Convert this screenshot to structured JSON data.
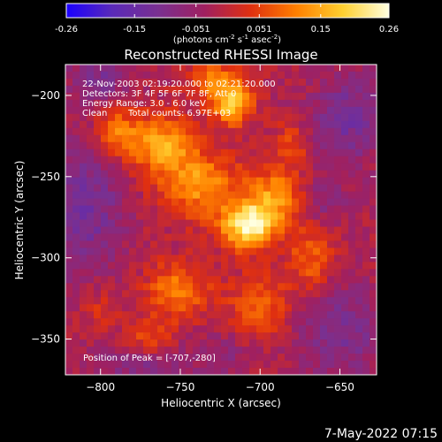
{
  "colorbar": {
    "tick_labels": [
      "-0.26",
      "-0.15",
      "-0.051",
      "0.051",
      "0.15",
      "0.26"
    ],
    "tick_values": [
      -0.26,
      -0.15,
      -0.051,
      0.051,
      0.15,
      0.26
    ],
    "range": [
      -0.26,
      0.26
    ],
    "units_prefix": "(photons cm",
    "units_sup1": "-2",
    "units_mid1": " s",
    "units_sup2": "-1",
    "units_mid2": " asec",
    "units_sup3": "-2",
    "units_suffix": ")",
    "colors": [
      "#1a00ff",
      "#5a2ab8",
      "#7a3090",
      "#a02060",
      "#e03010",
      "#ff8000",
      "#ffd030",
      "#ffffe0"
    ]
  },
  "annotations": {
    "time_range": "22-Nov-2003 02:19:20.000 to 02:21:20.000",
    "detectors": "Detectors: 3F 4F 5F 6F 7F 8F, Att 0",
    "energy_range": "Energy Range: 3.0 - 6.0 keV",
    "clean": "Clean",
    "total_counts": "Total counts: 6.97E+03",
    "peak_position": "Position of Peak = [-707,-280]"
  },
  "footer": {
    "date": "7-May-2022 07:15"
  },
  "chart_data": {
    "type": "heatmap",
    "title": "Reconstructed RHESSI Image",
    "xlabel": "Heliocentric X (arcsec)",
    "ylabel": "Heliocentric Y (arcsec)",
    "xlim": [
      -822,
      -627
    ],
    "ylim": [
      -372,
      -181
    ],
    "xticks": [
      -800,
      -750,
      -700,
      -650
    ],
    "yticks": [
      -200,
      -250,
      -300,
      -350
    ],
    "xtick_labels": [
      "−800",
      "−750",
      "−700",
      "−650"
    ],
    "ytick_labels": [
      "−200",
      "−250",
      "−300",
      "−350"
    ],
    "value_range": [
      -0.26,
      0.26
    ],
    "peak": {
      "x": -707,
      "y": -280,
      "value": 0.26
    },
    "sources": [
      {
        "x": -707,
        "y": -280,
        "sx": 12,
        "sy": 10,
        "amp": 0.26
      },
      {
        "x": -718,
        "y": -205,
        "sx": 9,
        "sy": 9,
        "amp": 0.2
      },
      {
        "x": -762,
        "y": -230,
        "sx": 14,
        "sy": 12,
        "amp": 0.16
      },
      {
        "x": -738,
        "y": -255,
        "sx": 18,
        "sy": 14,
        "amp": 0.15
      },
      {
        "x": -690,
        "y": -262,
        "sx": 12,
        "sy": 12,
        "amp": 0.14
      },
      {
        "x": -790,
        "y": -222,
        "sx": 10,
        "sy": 12,
        "amp": 0.12
      },
      {
        "x": -752,
        "y": -320,
        "sx": 14,
        "sy": 12,
        "amp": 0.13
      },
      {
        "x": -700,
        "y": -330,
        "sx": 14,
        "sy": 14,
        "amp": 0.1
      },
      {
        "x": -668,
        "y": -300,
        "sx": 10,
        "sy": 14,
        "amp": 0.1
      },
      {
        "x": -770,
        "y": -350,
        "sx": 10,
        "sy": 8,
        "amp": 0.09
      },
      {
        "x": -730,
        "y": -190,
        "sx": 12,
        "sy": 8,
        "amp": 0.11
      },
      {
        "x": -800,
        "y": -330,
        "sx": 8,
        "sy": 10,
        "amp": 0.05
      },
      {
        "x": -680,
        "y": -230,
        "sx": 8,
        "sy": 10,
        "amp": 0.08
      }
    ],
    "negatives": [
      {
        "x": -810,
        "y": -270,
        "sx": 18,
        "sy": 30,
        "amp": -0.1
      },
      {
        "x": -800,
        "y": -190,
        "sx": 14,
        "sy": 12,
        "amp": -0.08
      },
      {
        "x": -645,
        "y": -215,
        "sx": 16,
        "sy": 20,
        "amp": -0.1
      },
      {
        "x": -650,
        "y": -345,
        "sx": 20,
        "sy": 20,
        "amp": -0.09
      },
      {
        "x": -775,
        "y": -365,
        "sx": 18,
        "sy": 10,
        "amp": -0.07
      },
      {
        "x": -660,
        "y": -265,
        "sx": 10,
        "sy": 10,
        "amp": -0.06
      },
      {
        "x": -725,
        "y": -360,
        "sx": 14,
        "sy": 10,
        "amp": -0.05
      }
    ]
  }
}
